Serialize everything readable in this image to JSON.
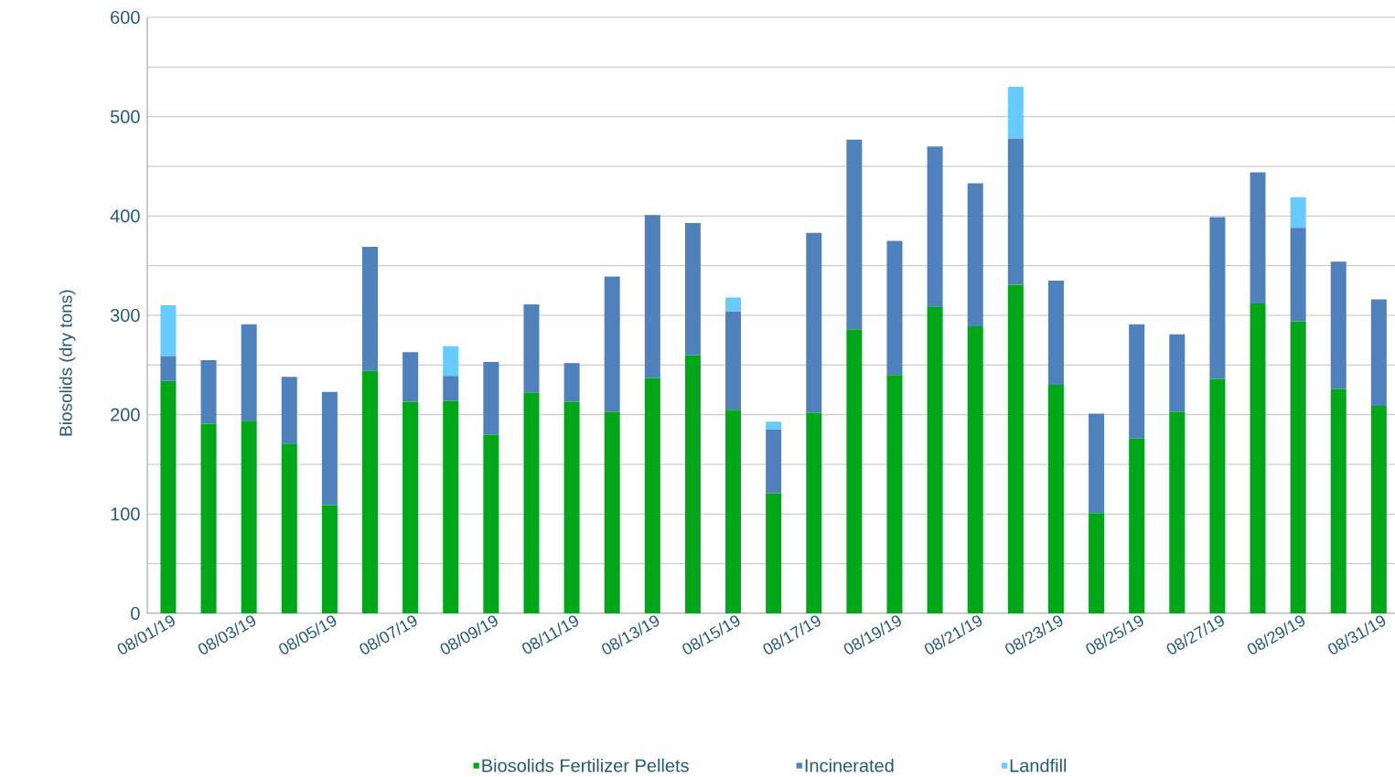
{
  "chart_data": {
    "type": "bar",
    "stacked": true,
    "ylabel": "Biosolids (dry tons)",
    "categories": [
      "08/01/19",
      null,
      "08/03/19",
      null,
      "08/05/19",
      null,
      "08/07/19",
      null,
      "08/09/19",
      null,
      "08/11/19",
      null,
      "08/13/19",
      null,
      "08/15/19",
      null,
      "08/17/19",
      null,
      "08/19/19",
      null,
      "08/21/19",
      null,
      "08/23/19",
      null,
      "08/25/19",
      null,
      "08/27/19",
      null,
      "08/29/19",
      null,
      "08/31/19"
    ],
    "series": [
      {
        "name": "Biosolids Fertilizer Pellets",
        "color": "#00a819",
        "values": [
          234,
          191,
          194,
          171,
          109,
          244,
          213,
          214,
          180,
          222,
          213,
          203,
          237,
          260,
          205,
          121,
          202,
          286,
          240,
          309,
          289,
          331,
          230,
          101,
          176,
          203,
          236,
          312,
          294,
          226,
          209
        ]
      },
      {
        "name": "Incinerated",
        "color": "#4f81bd",
        "values": [
          25,
          64,
          97,
          67,
          114,
          125,
          50,
          25,
          73,
          89,
          39,
          136,
          164,
          133,
          99,
          64,
          181,
          191,
          135,
          161,
          144,
          147,
          105,
          100,
          115,
          78,
          163,
          132,
          94,
          128,
          107
        ]
      },
      {
        "name": "Landfill",
        "color": "#66ccff",
        "values": [
          51,
          null,
          null,
          null,
          null,
          null,
          null,
          30,
          null,
          null,
          null,
          null,
          null,
          null,
          14,
          8,
          null,
          null,
          null,
          null,
          null,
          52,
          null,
          null,
          null,
          null,
          null,
          null,
          31,
          null,
          null
        ]
      }
    ],
    "ylim": [
      0,
      600
    ],
    "yticks": [
      0,
      {
        "value": 50,
        "label": null
      },
      100,
      {
        "value": 150,
        "label": null
      },
      200,
      {
        "value": 250,
        "label": null
      },
      300,
      {
        "value": 350,
        "label": null
      },
      400,
      {
        "value": 450,
        "label": null
      },
      500,
      {
        "value": 550,
        "label": null
      },
      600
    ],
    "grid": "y",
    "legend": "bottom"
  }
}
